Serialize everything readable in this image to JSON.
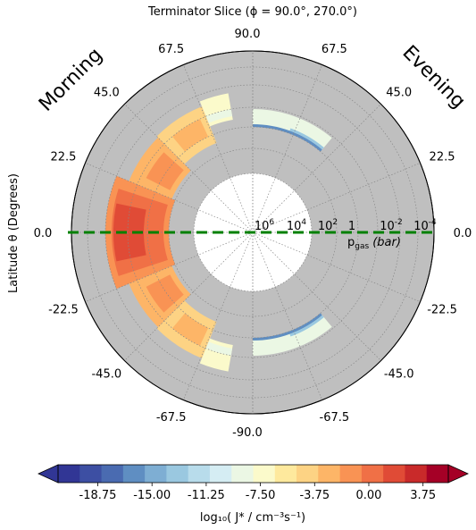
{
  "chart_data": {
    "type": "polar-contour",
    "title": "Terminator Slice (ϕ  =  90.0°, 270.0°)",
    "side_labels": {
      "left": "Morning",
      "right": "Evening"
    },
    "ylabel": "Latitude θ (Degrees)",
    "angle_ticks_left": [
      "90.0",
      "67.5",
      "45.0",
      "22.5",
      "0.0",
      "-22.5",
      "-45.0",
      "-67.5",
      "-90.0"
    ],
    "angle_ticks_right": [
      "67.5",
      "45.0",
      "22.5",
      "0.0",
      "-22.5",
      "-45.0",
      "-67.5"
    ],
    "angle_tick_values": [
      90,
      67.5,
      45,
      22.5,
      0,
      -22.5,
      -45,
      -67.5,
      -90
    ],
    "radial_ticks": [
      "10^6",
      "10^4",
      "10^2",
      "1",
      "10^-2",
      "10^-4"
    ],
    "radial_label": "p_gas (bar)",
    "equator_line_color": "#008000",
    "colorbar": {
      "ticks": [
        "-18.75",
        "-15.00",
        "-11.25",
        "-7.50",
        "-3.75",
        "0.00",
        "3.75"
      ],
      "tick_values": [
        -18.75,
        -15.0,
        -11.25,
        -7.5,
        -3.75,
        0.0,
        3.75
      ],
      "range": [
        -21.5,
        5.5
      ],
      "label": "log₁₀( J* / cm⁻³s⁻¹)",
      "colors": [
        "#313695",
        "#3d4fa3",
        "#4a6bb1",
        "#5f8ec2",
        "#7eaed3",
        "#9ac8e0",
        "#b8dceb",
        "#d5edf3",
        "#ebf7e4",
        "#fbfacb",
        "#fee99d",
        "#fdd384",
        "#fdb567",
        "#f99354",
        "#f07046",
        "#e04b36",
        "#c92a2a",
        "#a50026"
      ]
    },
    "background_color": "#bfbfbf"
  }
}
